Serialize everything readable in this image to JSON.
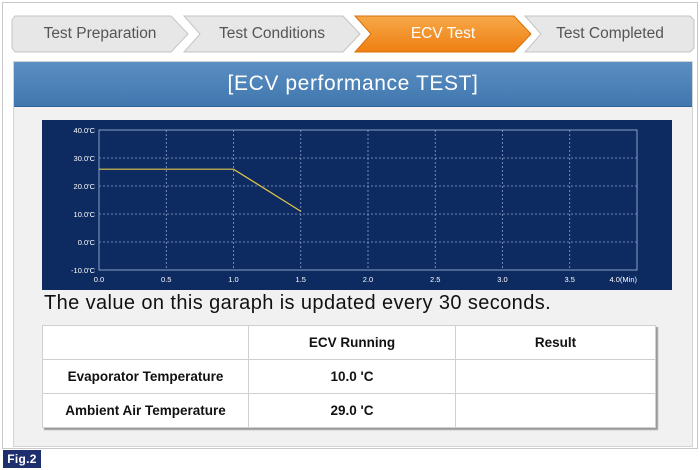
{
  "steps": [
    {
      "label": "Test Preparation",
      "active": false
    },
    {
      "label": "Test Conditions",
      "active": false
    },
    {
      "label": "ECV Test",
      "active": true
    },
    {
      "label": "Test Completed",
      "active": false
    }
  ],
  "panel": {
    "title": "[ECV performance TEST]"
  },
  "note": "The value on this garaph is updated every 30 seconds.",
  "table": {
    "headers": [
      "",
      "ECV Running",
      "Result"
    ],
    "rows": [
      [
        "Evaporator Temperature",
        "10.0 'C",
        ""
      ],
      [
        "Ambient Air Temperature",
        "29.0 'C",
        ""
      ]
    ]
  },
  "figure_label": "Fig.2",
  "colors": {
    "active_step": "#f08a1a",
    "inactive_step": "#e3e3e3",
    "header": "#4a82b8",
    "chart_bg": "#0d2b60",
    "chart_line": "#e2c64a"
  },
  "chart_data": {
    "type": "line",
    "x_ticks": [
      "0.0",
      "0.5",
      "1.0",
      "1.5",
      "2.0",
      "2.5",
      "3.0",
      "3.5",
      "4.0(Min)"
    ],
    "y_ticks": [
      "40.0'C",
      "30.0'C",
      "20.0'C",
      "10.0'C",
      "0.0'C",
      "-10.0'C"
    ],
    "xlim": [
      0,
      4
    ],
    "ylim": [
      -10,
      40
    ],
    "grid": true,
    "series": [
      {
        "x": [
          0,
          1.0,
          1.5
        ],
        "y": [
          26,
          26,
          11
        ]
      }
    ]
  }
}
